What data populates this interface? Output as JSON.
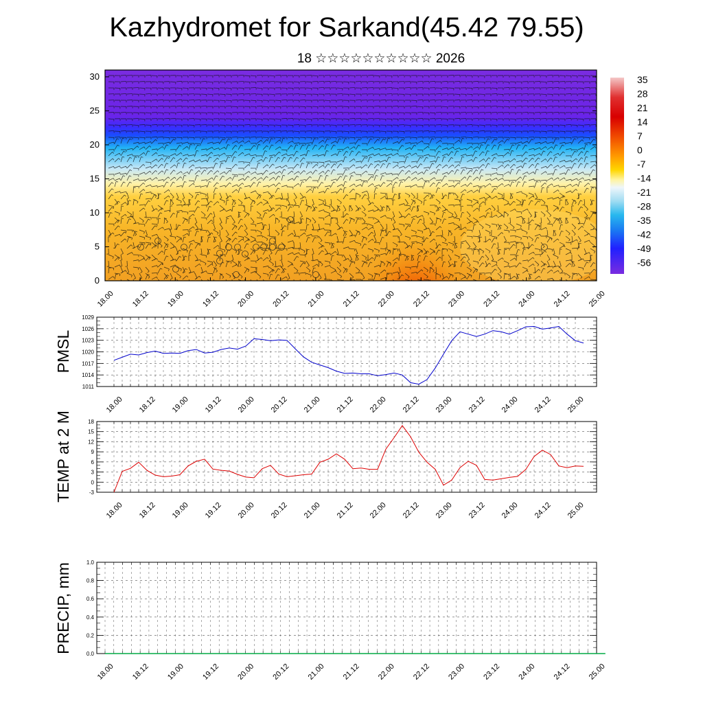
{
  "title": "Kazhydromet for Sarkand(45.42 79.55)",
  "subtitle": "18 ☆☆☆☆☆☆☆☆☆☆ 2026",
  "x_ticks": [
    "18.00",
    "18.12",
    "19.00",
    "19.12",
    "20.00",
    "20.12",
    "21.00",
    "21.12",
    "22.00",
    "22.12",
    "23.00",
    "23.12",
    "24.00",
    "24.12",
    "25.00"
  ],
  "chart_data": [
    {
      "type": "heatmap",
      "name": "vertical temperature cross-section with wind barbs",
      "ylabel": "",
      "ylim": [
        0,
        31
      ],
      "yticks": [
        0,
        5,
        10,
        15,
        20,
        25,
        30
      ],
      "x_categories": [
        "18.00",
        "18.12",
        "19.00",
        "19.12",
        "20.00",
        "20.12",
        "21.00",
        "21.12",
        "22.00",
        "22.12",
        "23.00",
        "23.12",
        "24.00",
        "24.12",
        "25.00"
      ],
      "colorbar": {
        "labels": [
          "35",
          "28",
          "21",
          "14",
          "7",
          "0",
          "-7",
          "-14",
          "-21",
          "-28",
          "-35",
          "-42",
          "-49",
          "-56"
        ],
        "min": -63,
        "max": 35
      },
      "layers": {
        "tropopause_level": 20.5,
        "freezing_level": 13,
        "surface_warm_max": 17
      }
    },
    {
      "type": "line",
      "name": "PMSL",
      "ylabel": "PMSL",
      "ylim": [
        1011,
        1029
      ],
      "yticks": [
        1011,
        1014,
        1017,
        1020,
        1023,
        1026,
        1029
      ],
      "x_step_hours": 3,
      "values": [
        1017.8,
        1018.6,
        1019.4,
        1019.2,
        1019.8,
        1020.2,
        1019.6,
        1019.7,
        1019.6,
        1020.3,
        1020.6,
        1019.7,
        1019.9,
        1020.6,
        1021,
        1020.7,
        1021.5,
        1023.4,
        1023.2,
        1022.9,
        1023.1,
        1023,
        1020.8,
        1018.7,
        1017.3,
        1016.6,
        1015.9,
        1015,
        1014.4,
        1014.5,
        1014.3,
        1014.3,
        1013.8,
        1014.1,
        1014.5,
        1014,
        1012,
        1011.6,
        1012.8,
        1015.8,
        1019.4,
        1022.9,
        1025.2,
        1024.6,
        1024,
        1024.6,
        1025.5,
        1025.2,
        1024.6,
        1025.5,
        1026.5,
        1026.6,
        1025.9,
        1026.2,
        1026.6,
        1024.6,
        1022.9,
        1022.3
      ]
    },
    {
      "type": "line",
      "name": "TEMP at 2 M",
      "ylabel": "TEMP at 2 M",
      "ylim": [
        -3,
        18
      ],
      "yticks": [
        -3,
        0,
        3,
        6,
        9,
        12,
        15,
        18
      ],
      "x_step_hours": 3,
      "values": [
        -3,
        3.2,
        4.1,
        5.9,
        3.5,
        2.1,
        1.6,
        1.8,
        2.2,
        4.8,
        6.2,
        6.8,
        3.9,
        3.5,
        3.3,
        2.3,
        1.5,
        1.3,
        4,
        5,
        2.4,
        1.6,
        1.9,
        2.2,
        2.4,
        5.9,
        6.8,
        8.4,
        6.8,
        4,
        4.2,
        3.8,
        3.8,
        9.8,
        13.2,
        16.8,
        13.5,
        8.9,
        5.9,
        3.8,
        -0.9,
        0.6,
        4.3,
        6.2,
        5,
        0.8,
        0.6,
        1,
        1.4,
        1.7,
        3.8,
        7.6,
        9.5,
        8.2,
        4.8,
        4.3,
        4.8,
        4.7
      ]
    },
    {
      "type": "line",
      "name": "PRECIP, mm",
      "ylabel": "PRECIP, mm",
      "ylim": [
        0,
        1
      ],
      "yticks": [
        "0.0",
        "0.2",
        "0.4",
        "0.6",
        "0.8",
        "1.0"
      ],
      "values": [
        0,
        0,
        0,
        0,
        0,
        0,
        0,
        0,
        0,
        0,
        0,
        0,
        0,
        0,
        0,
        0,
        0,
        0,
        0,
        0,
        0,
        0,
        0,
        0,
        0,
        0,
        0,
        0,
        0,
        0,
        0,
        0,
        0,
        0,
        0,
        0,
        0,
        0,
        0,
        0,
        0,
        0,
        0,
        0,
        0,
        0,
        0,
        0,
        0,
        0,
        0,
        0,
        0,
        0,
        0,
        0,
        0,
        0
      ]
    }
  ],
  "colors": {
    "pmsl_line": "#0000cc",
    "temp_line": "#dd0000",
    "precip_line": "#00aa44",
    "grid": "#555555"
  }
}
